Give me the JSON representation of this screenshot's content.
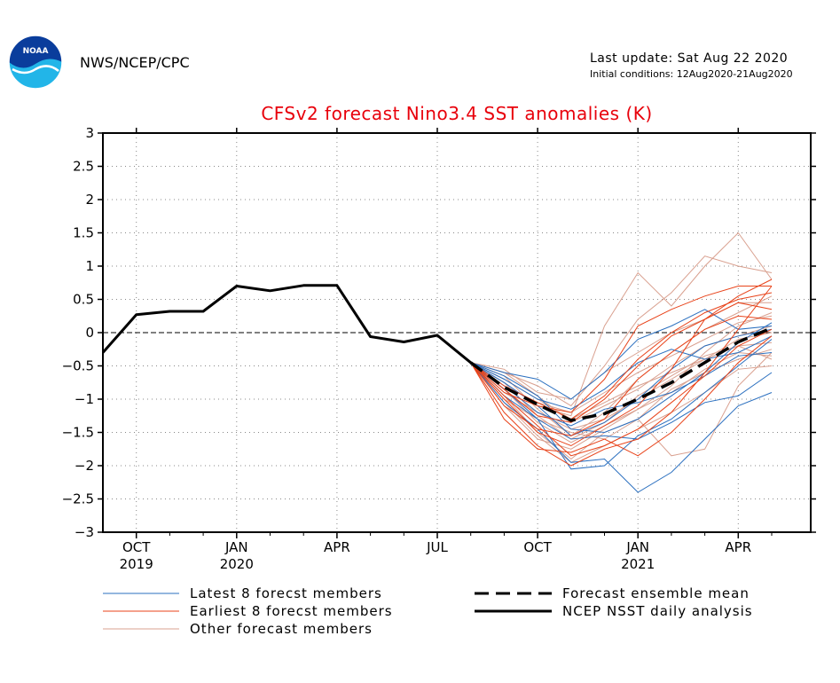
{
  "header": {
    "agency": "NWS/NCEP/CPC",
    "logo_text": "NOAA",
    "last_update": "Last update: Sat Aug 22 2020",
    "initial_conditions": "Initial conditions: 12Aug2020-21Aug2020"
  },
  "colors": {
    "title": "#e8000b",
    "latest_members": "#2a6fbf",
    "earliest_members": "#e8431a",
    "other_members": "#d9a08f",
    "analysis": "#000000",
    "logo_blue": "#0a3d9c",
    "logo_cyan": "#22b5e8"
  },
  "chart_data": {
    "type": "line",
    "title": "CFSv2 forecast Nino3.4 SST anomalies (K)",
    "xlabel": "",
    "ylabel": "",
    "ylim": [
      -3,
      3
    ],
    "yticks": [
      "3",
      "2.5",
      "2",
      "1.5",
      "1",
      "0.5",
      "0",
      "-0.5",
      "-1",
      "-1.5",
      "-2",
      "-2.5",
      "-3"
    ],
    "xticks": [
      {
        "month": "OCT",
        "year": "2019"
      },
      {
        "month": "JAN",
        "year": "2020"
      },
      {
        "month": "APR",
        "year": ""
      },
      {
        "month": "JUL",
        "year": ""
      },
      {
        "month": "OCT",
        "year": ""
      },
      {
        "month": "JAN",
        "year": "2021"
      },
      {
        "month": "APR",
        "year": ""
      }
    ],
    "grid": true,
    "x_months": [
      "Sep 2019",
      "Oct 2019",
      "Nov 2019",
      "Dec 2019",
      "Jan 2020",
      "Feb 2020",
      "Mar 2020",
      "Apr 2020",
      "May 2020",
      "Jun 2020",
      "Jul 2020",
      "Aug 2020",
      "Sep 2020",
      "Oct 2020",
      "Nov 2020",
      "Dec 2020",
      "Jan 2021",
      "Feb 2021",
      "Mar 2021",
      "Apr 2021",
      "May 2021"
    ],
    "analysis": {
      "name": "NCEP NSST daily analysis",
      "x_start": "Sep 2019",
      "values": [
        -0.3,
        0.27,
        0.32,
        0.32,
        0.7,
        0.63,
        0.71,
        0.71,
        -0.06,
        -0.14,
        -0.04,
        -0.45
      ]
    },
    "ensemble_mean": {
      "name": "Forecast ensemble mean",
      "x_start": "Aug 2020",
      "values": [
        -0.45,
        -0.82,
        -1.08,
        -1.32,
        -1.22,
        -1.0,
        -0.75,
        -0.45,
        -0.14,
        0.07
      ]
    },
    "latest_members": {
      "name": "Latest 8 forecst members",
      "x_start": "Aug 2020",
      "series": [
        [
          -0.45,
          -0.65,
          -0.95,
          -1.45,
          -1.5,
          -1.3,
          -0.95,
          -0.6,
          -0.15,
          0.15
        ],
        [
          -0.45,
          -0.85,
          -1.3,
          -2.05,
          -2.0,
          -1.55,
          -1.3,
          -0.9,
          -0.5,
          -0.1
        ],
        [
          -0.45,
          -0.75,
          -1.1,
          -1.55,
          -1.35,
          -1.0,
          -0.55,
          -0.2,
          -0.05,
          0.05
        ],
        [
          -0.45,
          -1.05,
          -1.45,
          -1.95,
          -1.9,
          -2.4,
          -2.1,
          -1.6,
          -1.1,
          -0.9
        ],
        [
          -0.45,
          -0.6,
          -0.7,
          -1.0,
          -0.6,
          -0.1,
          0.1,
          0.35,
          0.05,
          0.1
        ],
        [
          -0.45,
          -0.95,
          -1.3,
          -1.6,
          -1.55,
          -1.6,
          -1.35,
          -1.05,
          -0.95,
          -0.6
        ],
        [
          -0.45,
          -0.7,
          -1.0,
          -1.15,
          -0.85,
          -0.45,
          -0.25,
          -0.4,
          -0.3,
          -0.05
        ],
        [
          -0.45,
          -0.8,
          -1.2,
          -1.4,
          -1.15,
          -1.05,
          -0.9,
          -0.65,
          -0.35,
          -0.3
        ]
      ]
    },
    "earliest_members": {
      "name": "Earliest 8 forecst members",
      "x_start": "Aug 2020",
      "series": [
        [
          -0.45,
          -1.2,
          -1.7,
          -2.0,
          -1.75,
          -1.6,
          -1.2,
          -0.6,
          0.05,
          0.7
        ],
        [
          -0.45,
          -1.0,
          -1.5,
          -1.7,
          -1.4,
          -1.1,
          -0.55,
          0.2,
          0.55,
          0.8
        ],
        [
          -0.45,
          -0.9,
          -1.1,
          -1.2,
          -0.7,
          0.1,
          0.35,
          0.55,
          0.7,
          0.7
        ],
        [
          -0.45,
          -1.1,
          -1.45,
          -1.55,
          -1.3,
          -0.7,
          -0.3,
          0.05,
          0.25,
          0.2
        ],
        [
          -0.45,
          -0.85,
          -1.25,
          -1.35,
          -1.0,
          -0.5,
          -0.05,
          0.2,
          0.45,
          0.35
        ],
        [
          -0.45,
          -0.95,
          -1.4,
          -1.85,
          -1.7,
          -1.45,
          -1.05,
          -0.65,
          -0.2,
          0.05
        ],
        [
          -0.45,
          -1.3,
          -1.75,
          -1.8,
          -1.6,
          -1.85,
          -1.5,
          -1.0,
          -0.45,
          -0.05
        ],
        [
          -0.45,
          -0.8,
          -1.05,
          -1.3,
          -0.95,
          -0.4,
          0.0,
          0.3,
          0.5,
          0.6
        ]
      ]
    },
    "other_members": {
      "name": "Other forecast members",
      "x_start": "Aug 2020",
      "series": [
        [
          -0.45,
          -0.75,
          -1.1,
          -1.25,
          0.1,
          0.9,
          0.4,
          1.0,
          1.5,
          0.8
        ],
        [
          -0.45,
          -0.6,
          -0.8,
          -1.1,
          -0.5,
          0.2,
          0.6,
          1.15,
          1.0,
          0.9
        ],
        [
          -0.45,
          -0.95,
          -1.5,
          -1.9,
          -1.5,
          -1.3,
          -1.85,
          -1.75,
          -0.8,
          -0.3
        ],
        [
          -0.45,
          -0.55,
          -0.9,
          -1.0,
          -0.6,
          -0.3,
          0.0,
          0.2,
          0.45,
          0.45
        ],
        [
          -0.45,
          -0.85,
          -1.35,
          -1.65,
          -1.4,
          -1.15,
          -0.8,
          -0.3,
          0.1,
          0.3
        ],
        [
          -0.45,
          -1.05,
          -1.55,
          -1.95,
          -1.7,
          -1.45,
          -1.2,
          -0.9,
          -0.55,
          -0.5
        ],
        [
          -0.45,
          -0.7,
          -1.0,
          -1.3,
          -1.05,
          -0.8,
          -0.6,
          -0.4,
          -0.2,
          -0.15
        ],
        [
          -0.45,
          -0.9,
          -1.2,
          -1.45,
          -1.3,
          -1.0,
          -0.7,
          -0.4,
          -0.1,
          0.0
        ],
        [
          -0.45,
          -0.65,
          -1.15,
          -1.55,
          -1.2,
          -0.7,
          -0.3,
          0.05,
          0.3,
          0.55
        ],
        [
          -0.45,
          -1.0,
          -1.3,
          -1.5,
          -1.6,
          -1.3,
          -0.85,
          -0.6,
          -0.4,
          -0.25
        ],
        [
          -0.45,
          -0.8,
          -1.05,
          -1.2,
          -0.9,
          -0.6,
          -0.35,
          -0.1,
          0.15,
          0.25
        ],
        [
          -0.45,
          -1.1,
          -1.6,
          -1.75,
          -1.45,
          -1.15,
          -0.9,
          -0.55,
          -0.3,
          -0.35
        ],
        [
          -0.45,
          -0.6,
          -0.95,
          -1.35,
          -1.1,
          -0.85,
          -0.5,
          -0.2,
          -0.05,
          0.1
        ],
        [
          -0.45,
          -0.75,
          -1.25,
          -1.6,
          -1.35,
          -0.95,
          -0.65,
          -0.35,
          -0.2,
          -0.4
        ]
      ]
    }
  }
}
